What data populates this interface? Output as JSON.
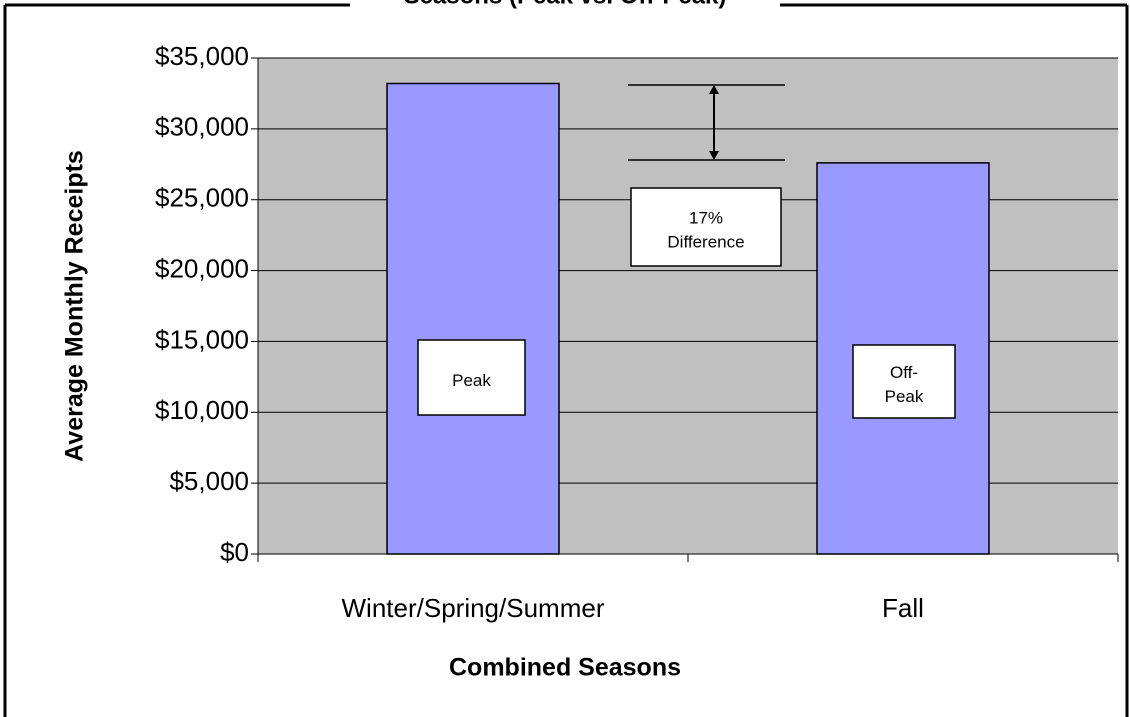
{
  "chart_data": {
    "type": "bar",
    "title": "Seasons (Peak vs. Off-Peak)",
    "x_label": "Combined Seasons",
    "y_label": "Average Monthly Receipts",
    "categories": [
      "Winter/Spring/Summer",
      "Fall"
    ],
    "values": [
      33200,
      27600
    ],
    "color": "#9999ff",
    "plot_background": "#c0c0c0",
    "ylim": [
      0,
      35000
    ],
    "yticks": [
      {
        "value": 0,
        "label": "$0"
      },
      {
        "value": 5000,
        "label": "$5,000"
      },
      {
        "value": 10000,
        "label": "$10,000"
      },
      {
        "value": 15000,
        "label": "$15,000"
      },
      {
        "value": 20000,
        "label": "$20,000"
      },
      {
        "value": 25000,
        "label": "$25,000"
      },
      {
        "value": 30000,
        "label": "$30,000"
      },
      {
        "value": 35000,
        "label": "$35,000"
      }
    ],
    "grid": true,
    "annotations": [
      {
        "lines": [
          "Peak"
        ]
      },
      {
        "lines": [
          "Off-",
          "Peak"
        ]
      },
      {
        "lines": [
          "17%",
          "Difference"
        ]
      }
    ]
  }
}
